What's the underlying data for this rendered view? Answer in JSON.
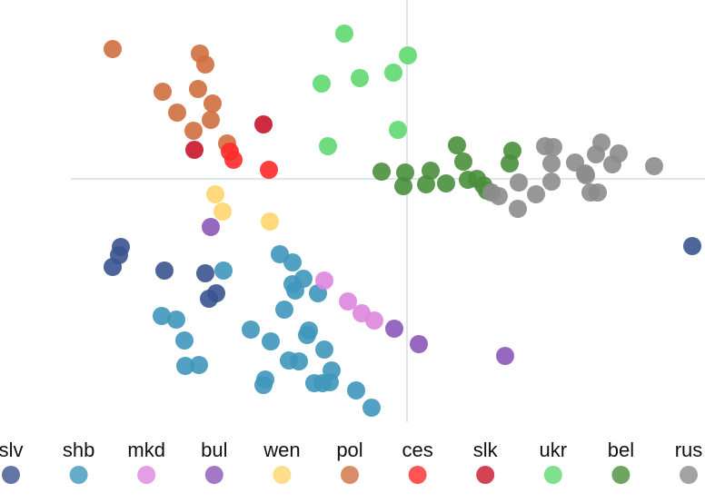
{
  "chart_data": {
    "type": "scatter",
    "xlim": [
      -448,
      328
    ],
    "ylim": [
      -268,
      197
    ],
    "series": [
      {
        "name": "slv",
        "color": "#3b5490",
        "x": [
          -315,
          -317,
          -324,
          -267,
          -222,
          -210,
          -218,
          314
        ],
        "y": [
          -75,
          -84,
          -97,
          -101,
          -104,
          -126,
          -132,
          -74
        ]
      },
      {
        "name": "shb",
        "color": "#3f97bb",
        "x": [
          -202,
          -140,
          -126,
          -114,
          -123,
          -98,
          -135,
          -270,
          -254,
          -245,
          -244,
          -229,
          -172,
          -150,
          -108,
          -110,
          -91,
          -130,
          -119,
          -83,
          -102,
          -93,
          -85,
          -156,
          -158,
          -56,
          -39,
          -126
        ],
        "y": [
          -101,
          -83,
          -92,
          -110,
          -123,
          -126,
          -144,
          -151,
          -155,
          -178,
          -206,
          -205,
          -166,
          -179,
          -167,
          -172,
          -188,
          -200,
          -201,
          -211,
          -225,
          -225,
          -224,
          -221,
          -227,
          -233,
          -252,
          -116
        ]
      },
      {
        "name": "mkd",
        "color": "#dd86dd",
        "x": [
          -91,
          -65,
          -50,
          -36
        ],
        "y": [
          -112,
          -135,
          -148,
          -156
        ]
      },
      {
        "name": "bul",
        "color": "#8b58b8",
        "x": [
          -14,
          13,
          108,
          -216
        ],
        "y": [
          -165,
          -182,
          -195,
          -53
        ]
      },
      {
        "name": "wen",
        "color": "#ffd56e",
        "x": [
          -211,
          -203,
          -151
        ],
        "y": [
          -17,
          -36,
          -47
        ]
      },
      {
        "name": "pol",
        "color": "#cf6f40",
        "x": [
          -324,
          -228,
          -222,
          -269,
          -230,
          -214,
          -253,
          -216,
          -235,
          -198
        ],
        "y": [
          143,
          138,
          126,
          96,
          99,
          83,
          73,
          65,
          53,
          39
        ]
      },
      {
        "name": "ces",
        "color": "#ff2a2a",
        "x": [
          -195,
          -191,
          -152
        ],
        "y": [
          30,
          21,
          10
        ]
      },
      {
        "name": "slk",
        "color": "#c8142a",
        "x": [
          -158,
          -234
        ],
        "y": [
          60,
          32
        ]
      },
      {
        "name": "ukr",
        "color": "#5fd870",
        "x": [
          -69,
          1,
          -94,
          -52,
          -15,
          -10,
          -87
        ],
        "y": [
          160,
          136,
          105,
          111,
          117,
          54,
          36
        ]
      },
      {
        "name": "bel",
        "color": "#4a8f3c",
        "x": [
          55,
          62,
          116,
          113,
          -28,
          -2,
          26,
          21,
          -4,
          43,
          67,
          77,
          84,
          88
        ],
        "y": [
          37,
          19,
          31,
          17,
          8,
          7,
          9,
          -6,
          -8,
          -5,
          -1,
          0,
          -7,
          -13
        ]
      },
      {
        "name": "rus",
        "color": "#8c8c8c",
        "x": [
          152,
          161,
          214,
          208,
          233,
          226,
          159,
          185,
          196,
          272,
          123,
          159,
          142,
          101,
          93,
          122,
          202,
          210,
          197
        ],
        "y": [
          36,
          35,
          40,
          27,
          28,
          16,
          17,
          18,
          6,
          14,
          -4,
          -3,
          -17,
          -19,
          -15,
          -33,
          -15,
          -15,
          4
        ]
      }
    ]
  }
}
